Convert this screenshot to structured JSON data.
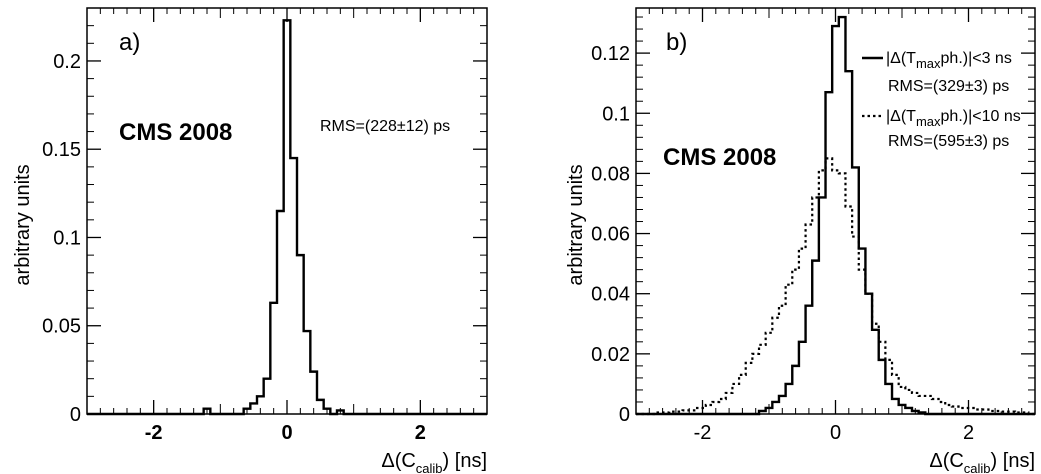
{
  "chart_data": [
    {
      "type": "histogram",
      "panel_label": "a)",
      "watermark": "CMS 2008",
      "annotation": "RMS=(228±12) ps",
      "ylabel": "arbitrary units",
      "xlabel": {
        "prefix": "Δ(C",
        "subscript": "calib",
        "suffix": ") [ns]"
      },
      "xlim": [
        -3,
        3
      ],
      "ylim": [
        0,
        0.23
      ],
      "xticks": [
        {
          "value": -2,
          "label": "-2"
        },
        {
          "value": 0,
          "label": "0"
        },
        {
          "value": 2,
          "label": "2"
        }
      ],
      "yticks": [
        {
          "value": 0,
          "label": "0"
        },
        {
          "value": 0.05,
          "label": "0.05"
        },
        {
          "value": 0.1,
          "label": "0.1"
        },
        {
          "value": 0.15,
          "label": "0.15"
        },
        {
          "value": 0.2,
          "label": "0.2"
        }
      ],
      "bold_ticks": true,
      "series": [
        {
          "style": "solid",
          "x": [
            -1.2,
            -1.1,
            -1.0,
            -0.9,
            -0.8,
            -0.7,
            -0.6,
            -0.5,
            -0.4,
            -0.3,
            -0.2,
            -0.1,
            0.0,
            0.1,
            0.2,
            0.3,
            0.4,
            0.5,
            0.6,
            0.7,
            0.8,
            0.9,
            1.0,
            1.1
          ],
          "values": [
            0.003,
            0.0,
            0.0,
            0.0,
            0.0,
            0.0,
            0.003,
            0.006,
            0.01,
            0.02,
            0.063,
            0.115,
            0.223,
            0.145,
            0.09,
            0.047,
            0.024,
            0.008,
            0.003,
            0.0,
            0.002,
            0.0,
            0.0,
            0.0
          ]
        }
      ]
    },
    {
      "type": "histogram",
      "panel_label": "b)",
      "watermark": "CMS 2008",
      "ylabel": "arbitrary units",
      "xlabel": {
        "prefix": "Δ(C",
        "subscript": "calib",
        "suffix": ") [ns]"
      },
      "xlim": [
        -3,
        3
      ],
      "ylim": [
        0,
        0.135
      ],
      "xticks": [
        {
          "value": -2,
          "label": "-2"
        },
        {
          "value": 0,
          "label": "0"
        },
        {
          "value": 2,
          "label": "2"
        }
      ],
      "yticks": [
        {
          "value": 0,
          "label": "0"
        },
        {
          "value": 0.02,
          "label": "0.02"
        },
        {
          "value": 0.04,
          "label": "0.04"
        },
        {
          "value": 0.06,
          "label": "0.06"
        },
        {
          "value": 0.08,
          "label": "0.08"
        },
        {
          "value": 0.1,
          "label": "0.1"
        },
        {
          "value": 0.12,
          "label": "0.12"
        }
      ],
      "bold_ticks": false,
      "legend_position": "top-right",
      "series": [
        {
          "name": {
            "prefix": "|Δ(T",
            "subscript": "max",
            "suffix": "ph.)|<3 ns"
          },
          "rms": "RMS=(329±3) ps",
          "style": "solid",
          "x": [
            -1.2,
            -1.1,
            -1.0,
            -0.9,
            -0.8,
            -0.7,
            -0.6,
            -0.5,
            -0.4,
            -0.3,
            -0.2,
            -0.1,
            0.0,
            0.1,
            0.2,
            0.3,
            0.4,
            0.5,
            0.6,
            0.7,
            0.8,
            0.9,
            1.0,
            1.1,
            1.2,
            1.3,
            1.4
          ],
          "values": [
            0.0,
            0.001,
            0.002,
            0.004,
            0.006,
            0.01,
            0.016,
            0.024,
            0.036,
            0.051,
            0.072,
            0.107,
            0.129,
            0.132,
            0.114,
            0.082,
            0.055,
            0.04,
            0.028,
            0.018,
            0.01,
            0.005,
            0.003,
            0.002,
            0.001,
            0.0005,
            0.0
          ]
        },
        {
          "name": {
            "prefix": "|Δ(T",
            "subscript": "max",
            "suffix": "ph.)|<10 ns"
          },
          "rms": "RMS=(595±3) ps",
          "style": "dotted",
          "x": [
            -2.8,
            -2.6,
            -2.4,
            -2.2,
            -2.0,
            -1.9,
            -1.8,
            -1.7,
            -1.6,
            -1.5,
            -1.4,
            -1.3,
            -1.2,
            -1.1,
            -1.0,
            -0.9,
            -0.8,
            -0.7,
            -0.6,
            -0.5,
            -0.4,
            -0.3,
            -0.2,
            -0.1,
            0.0,
            0.1,
            0.2,
            0.3,
            0.4,
            0.5,
            0.6,
            0.7,
            0.8,
            0.9,
            1.0,
            1.1,
            1.2,
            1.3,
            1.4,
            1.5,
            1.6,
            1.7,
            1.8,
            1.9,
            2.0,
            2.2,
            2.4,
            2.6,
            2.8
          ],
          "values": [
            0.0,
            0.0005,
            0.0008,
            0.0012,
            0.002,
            0.003,
            0.004,
            0.005,
            0.007,
            0.01,
            0.013,
            0.017,
            0.02,
            0.023,
            0.027,
            0.032,
            0.036,
            0.043,
            0.048,
            0.055,
            0.063,
            0.072,
            0.081,
            0.085,
            0.081,
            0.08,
            0.069,
            0.059,
            0.048,
            0.04,
            0.03,
            0.024,
            0.018,
            0.013,
            0.009,
            0.008,
            0.007,
            0.006,
            0.006,
            0.005,
            0.004,
            0.003,
            0.0025,
            0.002,
            0.002,
            0.0015,
            0.001,
            0.0008,
            0.0005
          ]
        }
      ]
    }
  ]
}
